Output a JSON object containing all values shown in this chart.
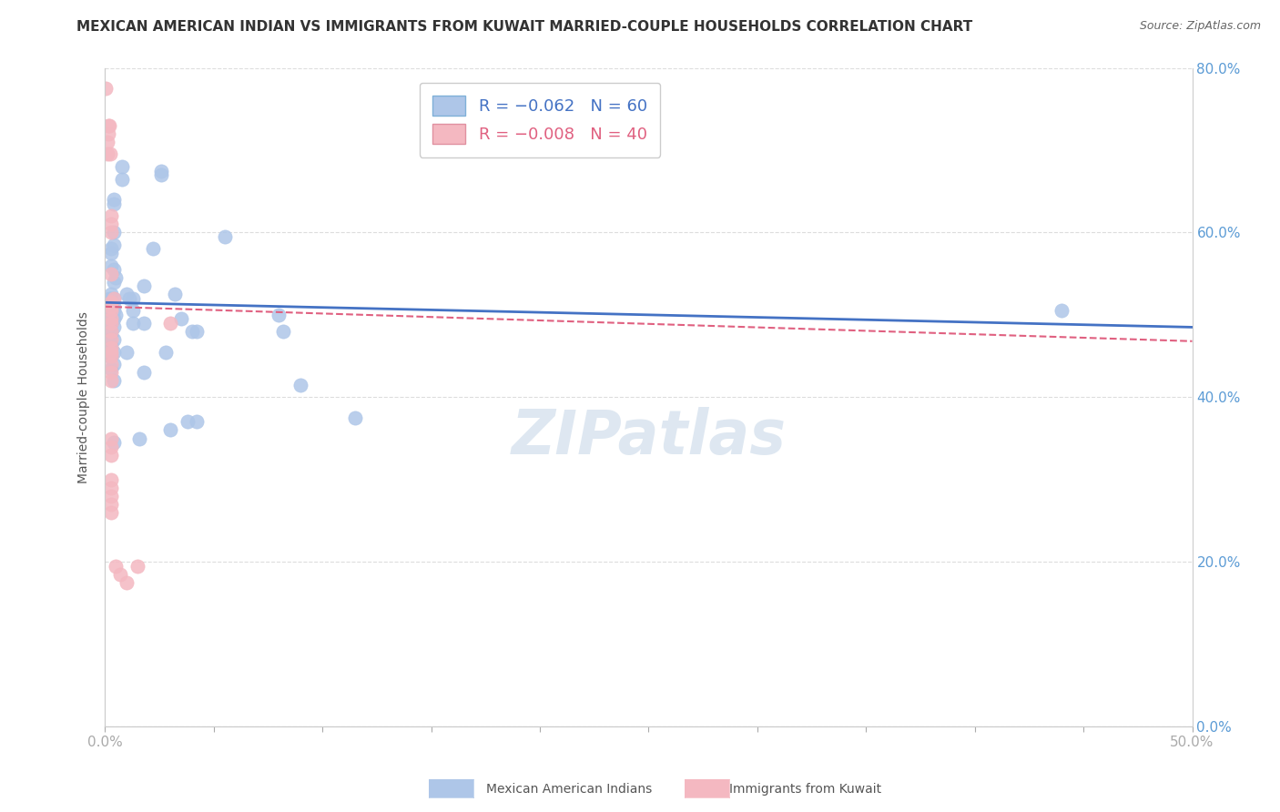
{
  "title": "MEXICAN AMERICAN INDIAN VS IMMIGRANTS FROM KUWAIT MARRIED-COUPLE HOUSEHOLDS CORRELATION CHART",
  "source": "Source: ZipAtlas.com",
  "ylabel": "Married-couple Households",
  "x_tick_labels": [
    "0.0%",
    "",
    "",
    "",
    "",
    "",
    "",
    "",
    "",
    "",
    "50.0%"
  ],
  "y_tick_labels_right": [
    "0.0%",
    "20.0%",
    "40.0%",
    "60.0%",
    "80.0%"
  ],
  "xlim": [
    0.0,
    0.5
  ],
  "ylim": [
    0.0,
    0.8
  ],
  "legend_label1": "Mexican American Indians",
  "legend_label2": "Immigrants from Kuwait",
  "watermark": "ZIPatlas",
  "blue_scatter": [
    [
      0.001,
      0.5
    ],
    [
      0.001,
      0.48
    ],
    [
      0.001,
      0.465
    ],
    [
      0.001,
      0.455
    ],
    [
      0.002,
      0.52
    ],
    [
      0.002,
      0.51
    ],
    [
      0.002,
      0.5
    ],
    [
      0.002,
      0.485
    ],
    [
      0.002,
      0.47
    ],
    [
      0.002,
      0.46
    ],
    [
      0.002,
      0.45
    ],
    [
      0.003,
      0.58
    ],
    [
      0.003,
      0.575
    ],
    [
      0.003,
      0.56
    ],
    [
      0.003,
      0.525
    ],
    [
      0.003,
      0.52
    ],
    [
      0.003,
      0.515
    ],
    [
      0.003,
      0.505
    ],
    [
      0.003,
      0.495
    ],
    [
      0.003,
      0.49
    ],
    [
      0.003,
      0.48
    ],
    [
      0.003,
      0.475
    ],
    [
      0.003,
      0.465
    ],
    [
      0.003,
      0.46
    ],
    [
      0.003,
      0.45
    ],
    [
      0.003,
      0.435
    ],
    [
      0.004,
      0.64
    ],
    [
      0.004,
      0.635
    ],
    [
      0.004,
      0.6
    ],
    [
      0.004,
      0.585
    ],
    [
      0.004,
      0.555
    ],
    [
      0.004,
      0.54
    ],
    [
      0.004,
      0.52
    ],
    [
      0.004,
      0.51
    ],
    [
      0.004,
      0.505
    ],
    [
      0.004,
      0.495
    ],
    [
      0.004,
      0.485
    ],
    [
      0.004,
      0.47
    ],
    [
      0.004,
      0.455
    ],
    [
      0.004,
      0.44
    ],
    [
      0.004,
      0.42
    ],
    [
      0.004,
      0.345
    ],
    [
      0.005,
      0.545
    ],
    [
      0.005,
      0.5
    ],
    [
      0.008,
      0.68
    ],
    [
      0.008,
      0.665
    ],
    [
      0.01,
      0.525
    ],
    [
      0.01,
      0.455
    ],
    [
      0.011,
      0.52
    ],
    [
      0.013,
      0.52
    ],
    [
      0.013,
      0.505
    ],
    [
      0.013,
      0.49
    ],
    [
      0.016,
      0.35
    ],
    [
      0.018,
      0.535
    ],
    [
      0.018,
      0.49
    ],
    [
      0.018,
      0.43
    ],
    [
      0.022,
      0.58
    ],
    [
      0.026,
      0.675
    ],
    [
      0.026,
      0.67
    ],
    [
      0.028,
      0.455
    ],
    [
      0.03,
      0.36
    ],
    [
      0.032,
      0.525
    ],
    [
      0.035,
      0.495
    ],
    [
      0.038,
      0.37
    ],
    [
      0.04,
      0.48
    ],
    [
      0.042,
      0.48
    ],
    [
      0.042,
      0.37
    ],
    [
      0.055,
      0.595
    ],
    [
      0.08,
      0.5
    ],
    [
      0.082,
      0.48
    ],
    [
      0.09,
      0.415
    ],
    [
      0.115,
      0.375
    ],
    [
      0.44,
      0.505
    ]
  ],
  "pink_scatter": [
    [
      0.0005,
      0.775
    ],
    [
      0.001,
      0.71
    ],
    [
      0.001,
      0.695
    ],
    [
      0.0015,
      0.73
    ],
    [
      0.0015,
      0.72
    ],
    [
      0.002,
      0.73
    ],
    [
      0.0025,
      0.695
    ],
    [
      0.003,
      0.62
    ],
    [
      0.003,
      0.61
    ],
    [
      0.003,
      0.6
    ],
    [
      0.003,
      0.55
    ],
    [
      0.003,
      0.515
    ],
    [
      0.003,
      0.51
    ],
    [
      0.003,
      0.505
    ],
    [
      0.003,
      0.495
    ],
    [
      0.003,
      0.49
    ],
    [
      0.003,
      0.48
    ],
    [
      0.003,
      0.47
    ],
    [
      0.003,
      0.46
    ],
    [
      0.003,
      0.455
    ],
    [
      0.003,
      0.45
    ],
    [
      0.003,
      0.44
    ],
    [
      0.003,
      0.43
    ],
    [
      0.003,
      0.42
    ],
    [
      0.003,
      0.35
    ],
    [
      0.003,
      0.34
    ],
    [
      0.003,
      0.33
    ],
    [
      0.003,
      0.3
    ],
    [
      0.003,
      0.29
    ],
    [
      0.003,
      0.28
    ],
    [
      0.003,
      0.27
    ],
    [
      0.003,
      0.26
    ],
    [
      0.004,
      0.52
    ],
    [
      0.005,
      0.195
    ],
    [
      0.007,
      0.185
    ],
    [
      0.01,
      0.175
    ],
    [
      0.015,
      0.195
    ],
    [
      0.03,
      0.49
    ]
  ],
  "blue_line_x": [
    0.0,
    0.5
  ],
  "blue_line_y": [
    0.515,
    0.485
  ],
  "pink_line_x": [
    0.0,
    0.5
  ],
  "pink_line_y": [
    0.51,
    0.468
  ],
  "grid_color": "#dddddd",
  "blue_color": "#aec6e8",
  "pink_color": "#f4b8c1",
  "blue_line_color": "#4472c4",
  "pink_line_color": "#e06080",
  "background_color": "#ffffff",
  "title_fontsize": 11,
  "source_fontsize": 9,
  "watermark_color": "#c8d8e8",
  "watermark_fontsize": 48,
  "scatter_size": 120
}
